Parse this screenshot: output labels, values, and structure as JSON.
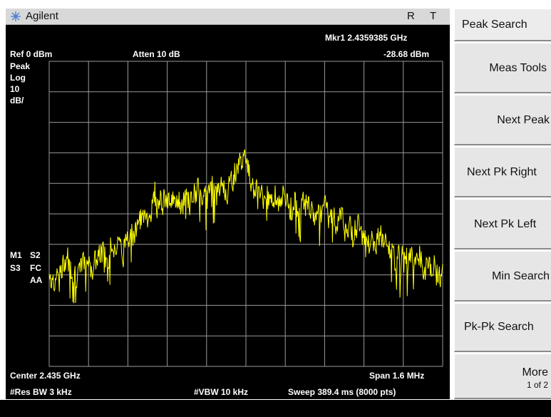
{
  "titlebar": {
    "brand": "Agilent",
    "indicator_r": "R",
    "indicator_t": "T"
  },
  "display": {
    "marker_readout_freq": "Mkr1  2.4359385 GHz",
    "marker_readout_amp": "-28.68 dBm",
    "ref_level": "Ref 0 dBm",
    "atten": "Atten 10 dB",
    "detector": "Peak",
    "scale_type": "Log",
    "scale_value": "10",
    "scale_unit": "dB/",
    "annot_m1": "M1",
    "annot_s2": "S2",
    "annot_s3": "S3",
    "annot_fc": "FC",
    "annot_aa": "AA",
    "marker_label": "1",
    "center": "Center 2.435 GHz",
    "span": "Span 1.6 MHz",
    "res_bw": "#Res BW 3 kHz",
    "vbw": "#VBW 10 kHz",
    "sweep": "Sweep 389.4 ms (8000 pts)"
  },
  "trace": {
    "color": "#ffff00",
    "center_ghz": 2.435,
    "span_mhz": 1.6,
    "ref_dbm": 0,
    "db_per_div": 10,
    "marker_freq_ghz": 2.4359385,
    "marker_amp_dbm": -28.68,
    "envelope": [
      [
        0.0,
        -70
      ],
      [
        0.05,
        -69
      ],
      [
        0.1,
        -66
      ],
      [
        0.15,
        -61
      ],
      [
        0.2,
        -58
      ],
      [
        0.25,
        -48
      ],
      [
        0.3,
        -46
      ],
      [
        0.35,
        -44
      ],
      [
        0.4,
        -45
      ],
      [
        0.45,
        -41
      ],
      [
        0.5,
        -32
      ],
      [
        0.55,
        -44
      ],
      [
        0.6,
        -45
      ],
      [
        0.65,
        -47
      ],
      [
        0.7,
        -49
      ],
      [
        0.75,
        -52
      ],
      [
        0.8,
        -55
      ],
      [
        0.85,
        -60
      ],
      [
        0.9,
        -64
      ],
      [
        0.95,
        -68
      ],
      [
        1.0,
        -70
      ]
    ]
  },
  "softkeys": {
    "title": "Peak Search",
    "items": [
      "Meas Tools",
      "Next Peak",
      "Next Pk Right",
      "Next Pk Left",
      "Min Search",
      "Pk-Pk Search"
    ],
    "more_label": "More",
    "more_page": "1 of 2"
  }
}
